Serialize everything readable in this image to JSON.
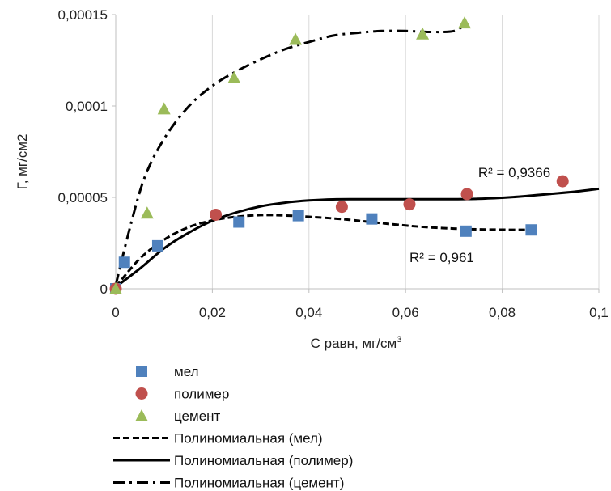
{
  "chart_data": {
    "type": "scatter",
    "xlabel": "С равн, мг/см",
    "xlabel_sup": "3",
    "ylabel": "Г, мг/см2",
    "xlim": [
      0,
      0.1
    ],
    "ylim": [
      0,
      0.00015
    ],
    "x_ticks": [
      0,
      0.02,
      0.04,
      0.06,
      0.08,
      0.1
    ],
    "x_tick_labels": [
      "0",
      "0,02",
      "0,04",
      "0,06",
      "0,08",
      "0,1"
    ],
    "y_ticks": [
      0,
      5e-05,
      0.0001,
      0.00015
    ],
    "y_tick_labels": [
      "0",
      "0,00005",
      "0,0001",
      "0,00015"
    ],
    "grid": "vertical",
    "legend_position": "bottom",
    "series": [
      {
        "name": "мел",
        "marker": "square",
        "color": "#4f81bd",
        "x": [
          0,
          0.0018,
          0.0087,
          0.0255,
          0.0378,
          0.053,
          0.0725,
          0.086
        ],
        "y": [
          0,
          1.45e-05,
          2.35e-05,
          3.65e-05,
          4e-05,
          3.82e-05,
          3.15e-05,
          3.22e-05
        ]
      },
      {
        "name": "полимер",
        "marker": "circle",
        "color": "#c0504d",
        "x": [
          0,
          0.0207,
          0.0468,
          0.0608,
          0.0727,
          0.0925
        ],
        "y": [
          0,
          4.05e-05,
          4.48e-05,
          4.62e-05,
          5.18e-05,
          5.88e-05
        ]
      },
      {
        "name": "цемент",
        "marker": "triangle",
        "color": "#9bbb59",
        "x": [
          0,
          0.0065,
          0.01,
          0.0245,
          0.0372,
          0.0635,
          0.0722
        ],
        "y": [
          0,
          4.15e-05,
          9.85e-05,
          0.0001155,
          0.0001365,
          0.0001395,
          0.0001455
        ]
      }
    ],
    "trendlines": [
      {
        "name": "Полиномиальная (мел)",
        "style": "dashed",
        "color": "#000000",
        "x": [
          0,
          0.005,
          0.01,
          0.015,
          0.02,
          0.025,
          0.03,
          0.035,
          0.04,
          0.045,
          0.05,
          0.055,
          0.06,
          0.065,
          0.07,
          0.075,
          0.08,
          0.086
        ],
        "y": [
          1e-06,
          1.65e-05,
          2.68e-05,
          3.36e-05,
          3.74e-05,
          3.94e-05,
          4.03e-05,
          4.01e-05,
          3.94e-05,
          3.85e-05,
          3.73e-05,
          3.59e-05,
          3.46e-05,
          3.36e-05,
          3.29e-05,
          3.25e-05,
          3.23e-05,
          3.22e-05
        ]
      },
      {
        "name": "Полиномиальная (полимер)",
        "style": "solid",
        "color": "#000000",
        "x": [
          0,
          0.005,
          0.01,
          0.015,
          0.02,
          0.025,
          0.03,
          0.035,
          0.04,
          0.045,
          0.05,
          0.055,
          0.06,
          0.065,
          0.07,
          0.075,
          0.08,
          0.085,
          0.09,
          0.095,
          0.1
        ],
        "y": [
          1e-06,
          1.1e-05,
          2.21e-05,
          3.05e-05,
          3.72e-05,
          4.18e-05,
          4.51e-05,
          4.71e-05,
          4.83e-05,
          4.89e-05,
          4.9e-05,
          4.9e-05,
          4.9e-05,
          4.9e-05,
          4.9e-05,
          4.92e-05,
          4.98e-05,
          5.07e-05,
          5.19e-05,
          5.31e-05,
          5.47e-05
        ]
      },
      {
        "name": "Полиномиальная (цемент)",
        "style": "dashdot",
        "color": "#000000",
        "x": [
          0,
          0.003,
          0.006,
          0.01,
          0.015,
          0.02,
          0.025,
          0.03,
          0.035,
          0.04,
          0.045,
          0.05,
          0.055,
          0.06,
          0.065,
          0.07,
          0.0725
        ],
        "y": [
          2e-06,
          3.4e-05,
          6.1e-05,
          8.2e-05,
          9.95e-05,
          0.000111,
          0.000119,
          0.0001255,
          0.000131,
          0.000135,
          0.0001385,
          0.00014,
          0.000141,
          0.000141,
          0.0001405,
          0.000141,
          0.000145
        ]
      }
    ],
    "annotations": [
      {
        "text": "R² = 0,9366",
        "x": 0.0825,
        "y": 6.1e-05
      },
      {
        "text": "R² = 0,961",
        "x": 0.0675,
        "y": 1.45e-05
      }
    ]
  }
}
